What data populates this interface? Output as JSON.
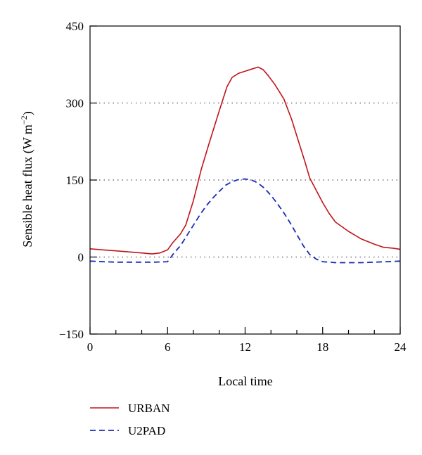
{
  "chart_data": {
    "type": "line",
    "title": "",
    "xlabel": "Local time",
    "ylabel": "Sensible heat flux (W m",
    "ylabel_superscript": "−2",
    "ylabel_close": ")",
    "xlim": [
      0,
      24
    ],
    "ylim": [
      -150,
      450
    ],
    "xticks": [
      0,
      6,
      12,
      18,
      24
    ],
    "xtick_labels": [
      "0",
      "6",
      "12",
      "18",
      "24"
    ],
    "xminor_step": 2,
    "yticks": [
      -150,
      0,
      150,
      300,
      450
    ],
    "ytick_labels": [
      "−150",
      "0",
      "150",
      "300",
      "450"
    ],
    "ygrid_dotted": [
      0,
      150,
      300
    ],
    "legend_position": "bottom-left, below plot",
    "series": [
      {
        "name": "URBAN",
        "color": "#c0141c",
        "style": "solid",
        "x": [
          0,
          1,
          2,
          3,
          4,
          4.8,
          5.4,
          6,
          6.4,
          7,
          7.4,
          8,
          8.6,
          9.2,
          10,
          10.6,
          11,
          11.5,
          12,
          12.5,
          13,
          13.4,
          13.8,
          14.3,
          15,
          15.6,
          16,
          16.6,
          17,
          17.5,
          18,
          18.5,
          19,
          20,
          21,
          22,
          22.7,
          23.5,
          24
        ],
        "y": [
          16,
          14,
          12,
          10,
          8,
          6,
          8,
          14,
          28,
          45,
          62,
          110,
          170,
          220,
          285,
          332,
          350,
          358,
          362,
          366,
          370,
          365,
          353,
          336,
          308,
          268,
          236,
          188,
          154,
          130,
          106,
          85,
          68,
          50,
          35,
          25,
          19,
          17,
          15
        ]
      },
      {
        "name": "U2PAD",
        "color": "#1a2ab8",
        "style": "dashed",
        "x": [
          0,
          1,
          2,
          3,
          4,
          5,
          6,
          6.5,
          7,
          7.5,
          8,
          8.5,
          9,
          9.5,
          10,
          10.5,
          11,
          11.5,
          12,
          12.5,
          13,
          13.5,
          14,
          14.5,
          15,
          15.5,
          16,
          16.5,
          17,
          17.5,
          18,
          18.5,
          19,
          20,
          21,
          22,
          23,
          24
        ],
        "y": [
          -8,
          -9,
          -10,
          -10,
          -10,
          -10,
          -9,
          8,
          22,
          42,
          62,
          82,
          100,
          115,
          128,
          140,
          147,
          151,
          152,
          150,
          144,
          134,
          120,
          104,
          86,
          66,
          44,
          22,
          5,
          -4,
          -9,
          -10,
          -11,
          -11,
          -11,
          -10,
          -9,
          -8
        ]
      }
    ]
  }
}
